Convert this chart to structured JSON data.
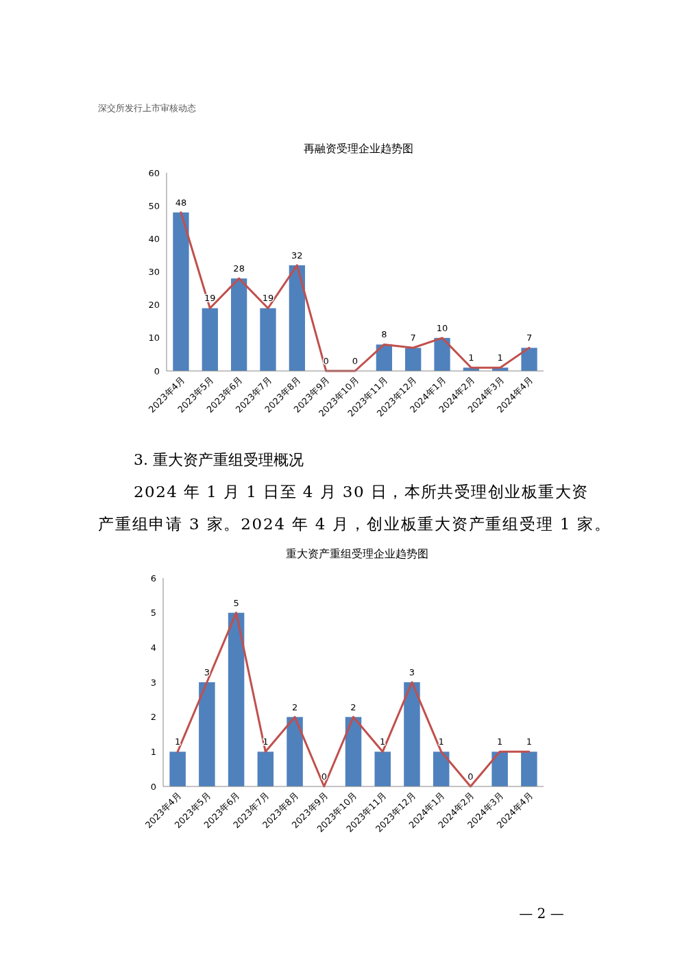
{
  "chart_data": [
    {
      "type": "bar",
      "title": "再融资受理企业趋势图",
      "annotations": [
        "深交所发行上市审核动态"
      ],
      "categories": [
        "2023年4月",
        "2023年5月",
        "2023年6月",
        "2023年7月",
        "2023年8月",
        "2023年9月",
        "2023年10月",
        "2023年11月",
        "2023年12月",
        "2024年1月",
        "2024年2月",
        "2024年3月",
        "2024年4月"
      ],
      "series": [
        {
          "color": "#4f81bd",
          "values": [
            48,
            19,
            28,
            19,
            32,
            0,
            0,
            8,
            7,
            10,
            1,
            1,
            7
          ],
          "value_labels": [
            "48",
            "19",
            "28",
            "19",
            "32",
            "0",
            "0",
            "8",
            "7",
            "10",
            "1",
            "1",
            "7"
          ]
        },
        {
          "type": "line",
          "color": "#c0504d",
          "values": [
            48,
            19,
            28,
            19,
            32,
            0,
            0,
            8,
            7,
            10,
            1,
            1,
            7
          ]
        }
      ],
      "ylim": [
        0,
        60
      ],
      "yticks": [
        0,
        10,
        20,
        30,
        40,
        50,
        60
      ]
    },
    {
      "type": "bar",
      "title": "重大资产重组受理企业趋势图",
      "annotations": [
        "3. 重大资产重组受理概况",
        "2024 年 1 月 1 日至 4 月 30 日，本所共受理创业板重大资",
        "产重组申请 3 家。2024 年 4 月，创业板重大资产重组受理 1 家。",
        "— 2 —"
      ],
      "categories": [
        "2023年4月",
        "2023年5月",
        "2023年6月",
        "2023年7月",
        "2023年8月",
        "2023年9月",
        "2023年10月",
        "2023年11月",
        "2023年12月",
        "2024年1月",
        "2024年2月",
        "2024年3月",
        "2024年4月"
      ],
      "series": [
        {
          "color": "#4f81bd",
          "values": [
            1,
            3,
            5,
            1,
            2,
            0,
            2,
            1,
            3,
            1,
            0,
            1,
            1
          ],
          "value_labels": [
            "1",
            "3",
            "5",
            "1",
            "2",
            "0",
            "2",
            "1",
            "3",
            "1",
            "0",
            "1",
            "1"
          ]
        },
        {
          "type": "line",
          "color": "#c0504d",
          "values": [
            1,
            3,
            5,
            1,
            2,
            0,
            2,
            1,
            3,
            1,
            0,
            1,
            1
          ]
        }
      ],
      "ylim": [
        0,
        6
      ],
      "yticks": [
        0,
        1,
        2,
        3,
        4,
        5,
        6
      ]
    }
  ]
}
